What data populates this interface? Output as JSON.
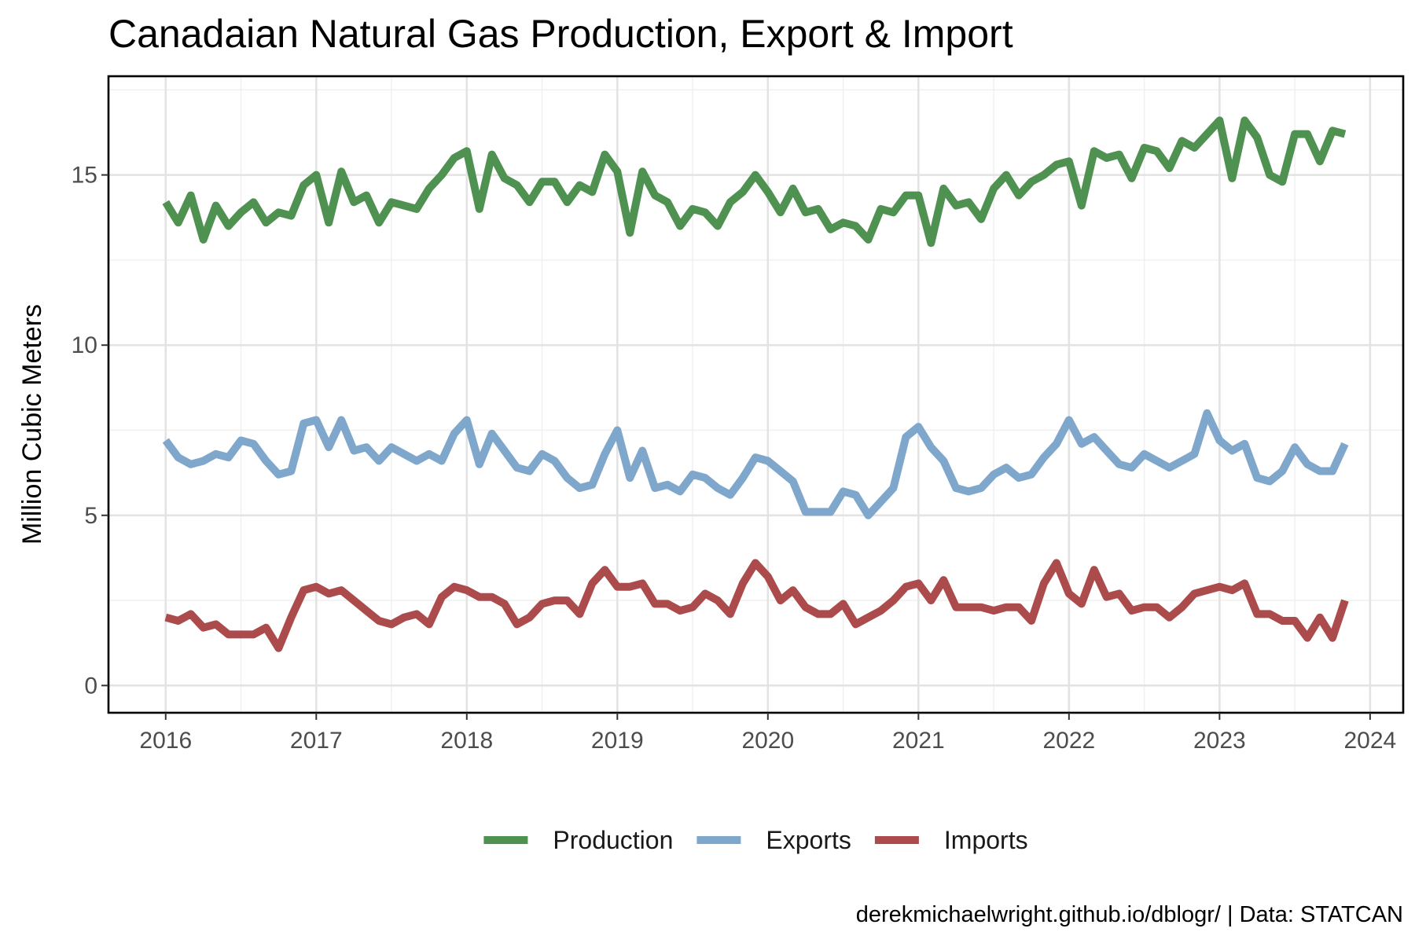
{
  "chart_data": {
    "type": "line",
    "title": "Canadaian Natural Gas Production, Export & Import",
    "ylabel": "Million Cubic Meters",
    "xlabel": "",
    "caption": "derekmichaelwright.github.io/dblogr/ | Data: STATCAN",
    "xlim": [
      2015.62,
      2024.22
    ],
    "ylim": [
      -0.8,
      17.9
    ],
    "x_ticks": [
      "2016",
      "2017",
      "2018",
      "2019",
      "2020",
      "2021",
      "2022",
      "2023",
      "2024"
    ],
    "y_ticks": [
      "0",
      "5",
      "10",
      "15"
    ],
    "grid": true,
    "legend_position": "bottom",
    "x_start": "2016-01",
    "x_step": "1 month",
    "series": [
      {
        "name": "Production",
        "color": "#4f9150",
        "values": [
          14.2,
          13.6,
          14.4,
          13.1,
          14.1,
          13.5,
          13.9,
          14.2,
          13.6,
          13.9,
          13.8,
          14.7,
          15.0,
          13.6,
          15.1,
          14.2,
          14.4,
          13.6,
          14.2,
          14.1,
          14.0,
          14.6,
          15.0,
          15.5,
          15.7,
          14.0,
          15.6,
          14.9,
          14.7,
          14.2,
          14.8,
          14.8,
          14.2,
          14.7,
          14.5,
          15.6,
          15.1,
          13.3,
          15.1,
          14.4,
          14.2,
          13.5,
          14.0,
          13.9,
          13.5,
          14.2,
          14.5,
          15.0,
          14.5,
          13.9,
          14.6,
          13.9,
          14.0,
          13.4,
          13.6,
          13.5,
          13.1,
          14.0,
          13.9,
          14.4,
          14.4,
          13.0,
          14.6,
          14.1,
          14.2,
          13.7,
          14.6,
          15.0,
          14.4,
          14.8,
          15.0,
          15.3,
          15.4,
          14.1,
          15.7,
          15.5,
          15.6,
          14.9,
          15.8,
          15.7,
          15.2,
          16.0,
          15.8,
          16.2,
          16.6,
          14.9,
          16.6,
          16.1,
          15.0,
          14.8,
          16.2,
          16.2,
          15.4,
          16.3,
          16.2
        ]
      },
      {
        "name": "Exports",
        "color": "#7fa7cc",
        "values": [
          7.2,
          6.7,
          6.5,
          6.6,
          6.8,
          6.7,
          7.2,
          7.1,
          6.6,
          6.2,
          6.3,
          7.7,
          7.8,
          7.0,
          7.8,
          6.9,
          7.0,
          6.6,
          7.0,
          6.8,
          6.6,
          6.8,
          6.6,
          7.4,
          7.8,
          6.5,
          7.4,
          6.9,
          6.4,
          6.3,
          6.8,
          6.6,
          6.1,
          5.8,
          5.9,
          6.8,
          7.5,
          6.1,
          6.9,
          5.8,
          5.9,
          5.7,
          6.2,
          6.1,
          5.8,
          5.6,
          6.1,
          6.7,
          6.6,
          6.3,
          6.0,
          5.1,
          5.1,
          5.1,
          5.7,
          5.6,
          5.0,
          5.4,
          5.8,
          7.3,
          7.6,
          7.0,
          6.6,
          5.8,
          5.7,
          5.8,
          6.2,
          6.4,
          6.1,
          6.2,
          6.7,
          7.1,
          7.8,
          7.1,
          7.3,
          6.9,
          6.5,
          6.4,
          6.8,
          6.6,
          6.4,
          6.6,
          6.8,
          8.0,
          7.2,
          6.9,
          7.1,
          6.1,
          6.0,
          6.3,
          7.0,
          6.5,
          6.3,
          6.3,
          7.1
        ]
      },
      {
        "name": "Imports",
        "color": "#ac4b4b",
        "values": [
          2.0,
          1.9,
          2.1,
          1.7,
          1.8,
          1.5,
          1.5,
          1.5,
          1.7,
          1.1,
          2.0,
          2.8,
          2.9,
          2.7,
          2.8,
          2.5,
          2.2,
          1.9,
          1.8,
          2.0,
          2.1,
          1.8,
          2.6,
          2.9,
          2.8,
          2.6,
          2.6,
          2.4,
          1.8,
          2.0,
          2.4,
          2.5,
          2.5,
          2.1,
          3.0,
          3.4,
          2.9,
          2.9,
          3.0,
          2.4,
          2.4,
          2.2,
          2.3,
          2.7,
          2.5,
          2.1,
          3.0,
          3.6,
          3.2,
          2.5,
          2.8,
          2.3,
          2.1,
          2.1,
          2.4,
          1.8,
          2.0,
          2.2,
          2.5,
          2.9,
          3.0,
          2.5,
          3.1,
          2.3,
          2.3,
          2.3,
          2.2,
          2.3,
          2.3,
          1.9,
          3.0,
          3.6,
          2.7,
          2.4,
          3.4,
          2.6,
          2.7,
          2.2,
          2.3,
          2.3,
          2.0,
          2.3,
          2.7,
          2.8,
          2.9,
          2.8,
          3.0,
          2.1,
          2.1,
          1.9,
          1.9,
          1.4,
          2.0,
          1.4,
          2.5
        ]
      }
    ]
  }
}
